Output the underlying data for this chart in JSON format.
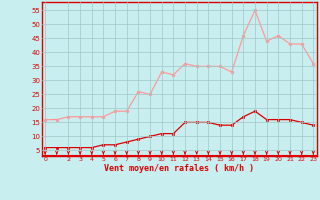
{
  "x": [
    0,
    1,
    2,
    3,
    4,
    5,
    6,
    7,
    8,
    9,
    10,
    11,
    12,
    13,
    14,
    15,
    16,
    17,
    18,
    19,
    20,
    21,
    22,
    23
  ],
  "wind_avg": [
    6,
    6,
    6,
    6,
    6,
    7,
    7,
    8,
    9,
    10,
    11,
    11,
    15,
    15,
    15,
    14,
    14,
    17,
    19,
    16,
    16,
    16,
    15,
    14
  ],
  "wind_gust": [
    16,
    16,
    17,
    17,
    17,
    17,
    19,
    19,
    26,
    25,
    33,
    32,
    36,
    35,
    35,
    35,
    33,
    46,
    55,
    44,
    46,
    43,
    43,
    36
  ],
  "bg_color": "#c8eef0",
  "grid_color": "#a0c8c8",
  "avg_color": "#dd0000",
  "gust_color": "#ff9999",
  "xlabel": "Vent moyen/en rafales ( km/h )",
  "yticks": [
    5,
    10,
    15,
    20,
    25,
    30,
    35,
    40,
    45,
    50,
    55
  ],
  "xtick_labels": [
    "0",
    "2",
    "3",
    "4",
    "5",
    "6",
    "7",
    "8",
    "9",
    "10",
    "11",
    "12",
    "13",
    "14",
    "15",
    "16",
    "17",
    "18",
    "19",
    "20",
    "21",
    "22",
    "23"
  ],
  "xtick_pos": [
    0,
    2,
    3,
    4,
    5,
    6,
    7,
    8,
    9,
    10,
    11,
    12,
    13,
    14,
    15,
    16,
    17,
    18,
    19,
    20,
    21,
    22,
    23
  ],
  "ymin": 3,
  "ymax": 58,
  "xmin": -0.3,
  "xmax": 23.3
}
